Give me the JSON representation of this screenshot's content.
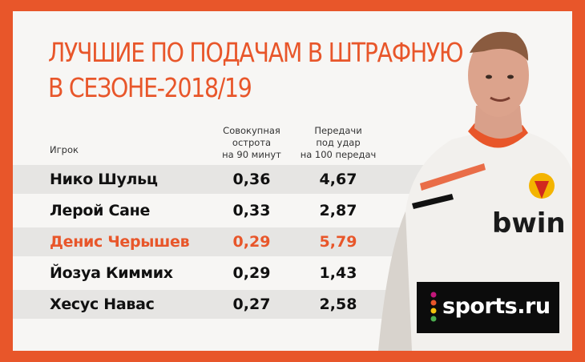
{
  "title": {
    "line1": "ЛУЧШИЕ ПО ПОДАЧАМ В ШТРАФНУЮ",
    "line2": "В СЕЗОНЕ-2018/19"
  },
  "columns": {
    "player": "Игрок",
    "sharpness": "Совокупная\nострота\nна 90 минут",
    "passes": "Передачи\nпод удар\nна 100 передач"
  },
  "rows": [
    {
      "name": "Нико Шульц",
      "sharpness": "0,36",
      "passes": "4,67"
    },
    {
      "name": "Лерой Сане",
      "sharpness": "0,33",
      "passes": "2,87"
    },
    {
      "name": "Денис Черышев",
      "sharpness": "0,29",
      "passes": "5,79"
    },
    {
      "name": "Йозуа Киммих",
      "sharpness": "0,29",
      "passes": "1,43"
    },
    {
      "name": "Хесус Навас",
      "sharpness": "0,27",
      "passes": "2,58"
    }
  ],
  "brand": {
    "logo_text": "sports.ru",
    "accent": "#e8562a",
    "shirt_text": "bwin"
  }
}
